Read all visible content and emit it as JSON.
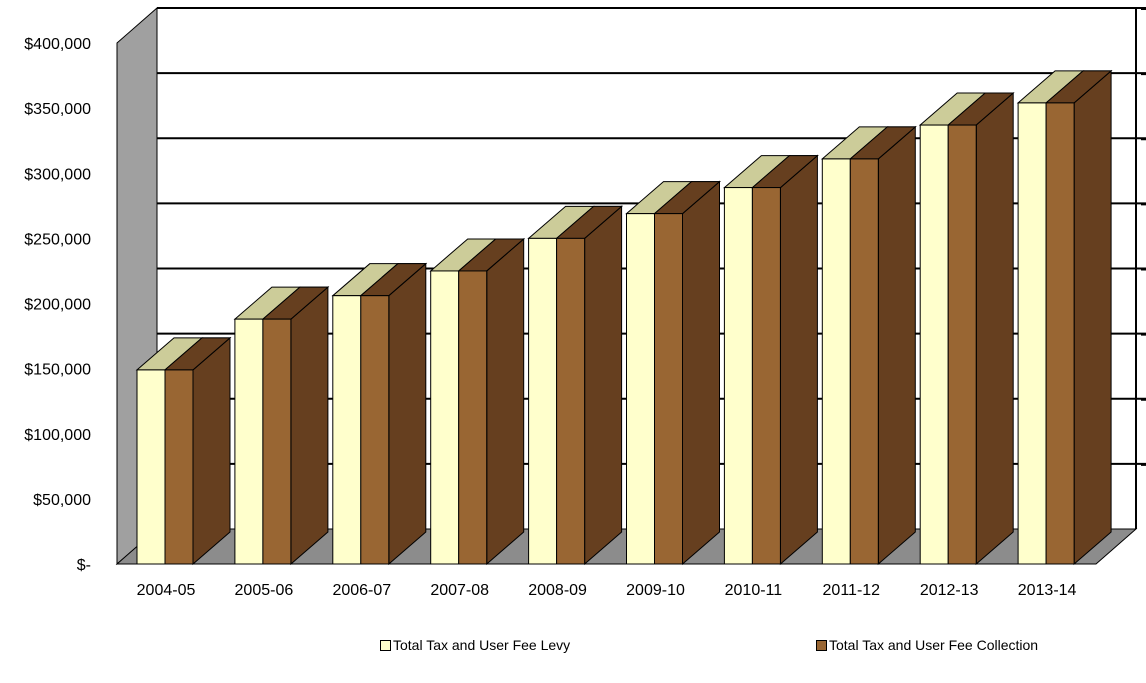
{
  "chart_data": {
    "type": "bar",
    "title": "",
    "xlabel": "",
    "ylabel": "",
    "categories": [
      "2004-05",
      "2005-06",
      "2006-07",
      "2007-08",
      "2008-09",
      "2009-10",
      "2010-11",
      "2011-12",
      "2012-13",
      "2013-14"
    ],
    "series": [
      {
        "name": "Total Tax and User Fee Levy",
        "values": [
          149000,
          188000,
          206000,
          225000,
          250000,
          269000,
          289000,
          311000,
          337000,
          354000
        ],
        "color": "#ffffcc",
        "top_color": "#cccc99"
      },
      {
        "name": "Total Tax and User Fee Collection",
        "values": [
          149000,
          188000,
          206000,
          225000,
          250000,
          269000,
          289000,
          311000,
          337000,
          354000
        ],
        "color": "#996633",
        "side_color": "#663f1f"
      }
    ],
    "ylim": [
      0,
      400000
    ],
    "yticks": [
      0,
      50000,
      100000,
      150000,
      200000,
      250000,
      300000,
      350000,
      400000
    ],
    "ytick_labels": [
      "$-",
      "$50,000",
      "$100,000",
      "$150,000",
      "$200,000",
      "$250,000",
      "$300,000",
      "$350,000",
      "$400,000"
    ],
    "grid": true,
    "legend_position": "bottom",
    "style": "3d-clustered-column"
  }
}
